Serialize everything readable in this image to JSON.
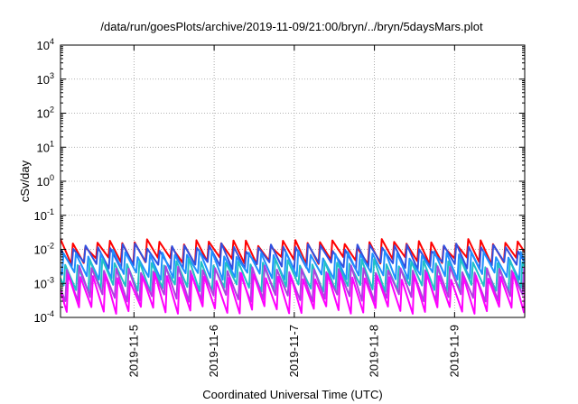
{
  "chart_data": {
    "type": "line",
    "title": "/data/run/goesPlots/archive/2019-11-09/21:00/bryn/../bryn/5daysMars.plot",
    "xlabel": "Coordinated Universal Time (UTC)",
    "ylabel": "cSv/day",
    "yscale": "log",
    "ylim": [
      0.0001,
      10000
    ],
    "xlim": [
      "2019-11-04T02:00",
      "2019-11-09T21:00"
    ],
    "y_ticks": [
      {
        "value": 0.0001,
        "base": "10",
        "exp": "-4"
      },
      {
        "value": 0.001,
        "base": "10",
        "exp": "-3"
      },
      {
        "value": 0.01,
        "base": "10",
        "exp": "-2"
      },
      {
        "value": 0.1,
        "base": "10",
        "exp": "-1"
      },
      {
        "value": 1,
        "base": "10",
        "exp": "0"
      },
      {
        "value": 10,
        "base": "10",
        "exp": "1"
      },
      {
        "value": 100,
        "base": "10",
        "exp": "2"
      },
      {
        "value": 1000,
        "base": "10",
        "exp": "3"
      },
      {
        "value": 10000,
        "base": "10",
        "exp": "4"
      }
    ],
    "x_ticks": [
      {
        "value": "2019-11-05T00:00",
        "label": "2019-11-5"
      },
      {
        "value": "2019-11-06T00:00",
        "label": "2019-11-6"
      },
      {
        "value": "2019-11-07T00:00",
        "label": "2019-11-7"
      },
      {
        "value": "2019-11-08T00:00",
        "label": "2019-11-8"
      },
      {
        "value": "2019-11-09T00:00",
        "label": "2019-11-9"
      }
    ],
    "grid": true,
    "legend": "none",
    "sawtooth_period_hours": 3.7,
    "series": [
      {
        "color": "#ff0000",
        "peak": 0.016,
        "trough": 0.0045,
        "offset_hours": 0.0
      },
      {
        "color": "#3050e0",
        "peak": 0.012,
        "trough": 0.0032,
        "offset_hours": 0.1
      },
      {
        "color": "#1e90ff",
        "peak": 0.0075,
        "trough": 0.0016,
        "offset_hours": 0.9
      },
      {
        "color": "#20c0c8",
        "peak": 0.0042,
        "trough": 0.0007,
        "offset_hours": 1.4
      },
      {
        "color": "#b040e0",
        "peak": 0.0026,
        "trough": 0.00036,
        "offset_hours": 1.9
      },
      {
        "color": "#ff00ff",
        "peak": 0.0016,
        "trough": 0.00016,
        "offset_hours": 2.3
      }
    ]
  }
}
